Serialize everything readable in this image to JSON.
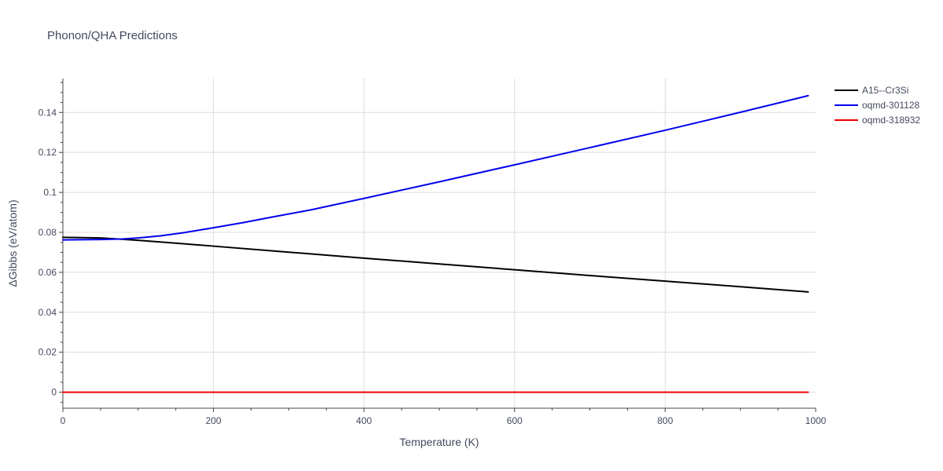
{
  "chart_data": {
    "type": "line",
    "title": "Phonon/QHA Predictions",
    "xlabel": "Temperature (K)",
    "ylabel": "ΔGibbs (eV/atom)",
    "xlim": [
      0,
      1000
    ],
    "ylim": [
      -0.008,
      0.157
    ],
    "x_ticks": [
      0,
      200,
      400,
      600,
      800,
      1000
    ],
    "x_tick_labels": [
      "0",
      "200",
      "400",
      "600",
      "800",
      "1000"
    ],
    "y_ticks": [
      0,
      0.02,
      0.04,
      0.06,
      0.08,
      0.1,
      0.12,
      0.14
    ],
    "y_tick_labels": [
      "0",
      "0.02",
      "0.04",
      "0.06",
      "0.08",
      "0.1",
      "0.12",
      "0.14"
    ],
    "grid": true,
    "legend_position": "top-right",
    "series": [
      {
        "name": "A15--Cr3Si",
        "color": "#000000",
        "x": [
          0,
          20,
          50,
          80,
          100,
          150,
          200,
          300,
          400,
          500,
          600,
          700,
          800,
          900,
          990
        ],
        "y": [
          0.0775,
          0.0774,
          0.0772,
          0.0765,
          0.076,
          0.0746,
          0.0731,
          0.0701,
          0.0671,
          0.0642,
          0.0613,
          0.0584,
          0.0556,
          0.0528,
          0.0502
        ]
      },
      {
        "name": "oqmd-301128",
        "color": "#0000ee",
        "x": [
          0,
          20,
          50,
          80,
          100,
          130,
          160,
          200,
          240,
          280,
          330,
          400,
          500,
          600,
          700,
          800,
          900,
          990
        ],
        "y": [
          0.0762,
          0.0763,
          0.0764,
          0.0767,
          0.0772,
          0.0783,
          0.0798,
          0.0823,
          0.0849,
          0.0878,
          0.0913,
          0.097,
          0.1053,
          0.1138,
          0.1224,
          0.1311,
          0.1401,
          0.1484
        ]
      },
      {
        "name": "oqmd-318932",
        "color": "#ee0000",
        "x": [
          0,
          990
        ],
        "y": [
          0,
          0
        ]
      }
    ]
  }
}
